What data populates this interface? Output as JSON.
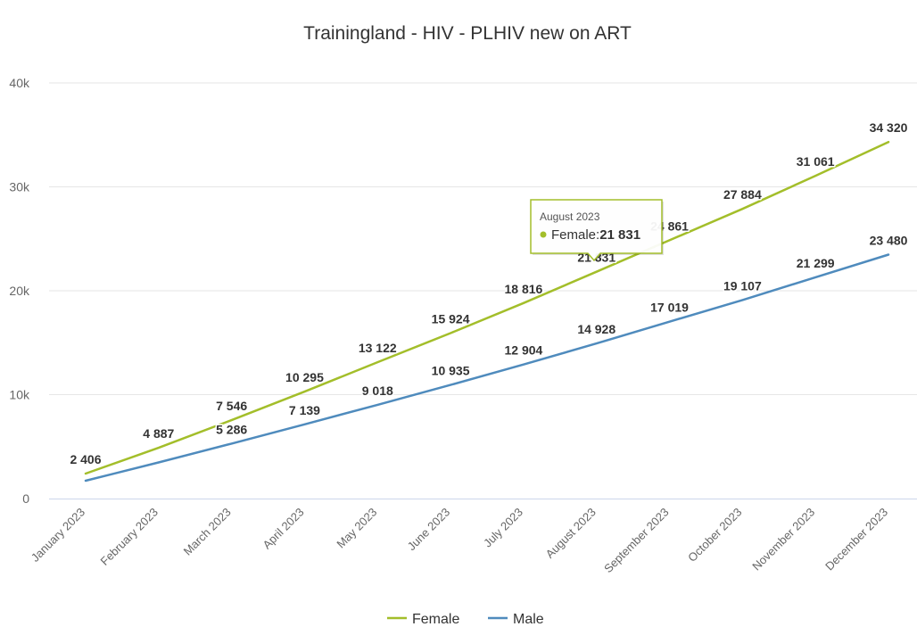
{
  "chart_data": {
    "type": "line",
    "title": "Trainingland - HIV - PLHIV new on ART",
    "categories": [
      "January 2023",
      "February 2023",
      "March 2023",
      "April 2023",
      "May 2023",
      "June 2023",
      "July 2023",
      "August 2023",
      "September 2023",
      "October 2023",
      "November 2023",
      "December 2023"
    ],
    "yticks": [
      "0",
      "10k",
      "20k",
      "30k",
      "40k"
    ],
    "ylim": [
      0,
      40000
    ],
    "grid": true,
    "legend_position": "bottom",
    "series": [
      {
        "name": "Female",
        "color": "#a3be2a",
        "values": [
          2406,
          4887,
          7546,
          10295,
          13122,
          15924,
          18816,
          21831,
          24861,
          27884,
          31061,
          34320
        ],
        "labels": [
          "2 406",
          "4 887",
          "7 546",
          "10 295",
          "13 122",
          "15 924",
          "18 816",
          "21 831",
          "24 861",
          "27 884",
          "31 061",
          "34 320"
        ]
      },
      {
        "name": "Male",
        "color": "#4f8bbd",
        "values": [
          1720,
          3480,
          5286,
          7139,
          9018,
          10935,
          12904,
          14928,
          17019,
          19107,
          21299,
          23480
        ],
        "labels": [
          null,
          null,
          "5 286",
          "7 139",
          "9 018",
          "10 935",
          "12 904",
          "14 928",
          "17 019",
          "19 107",
          "21 299",
          "23 480"
        ]
      }
    ],
    "tooltip": {
      "date": "August 2023",
      "series_label": "Female: ",
      "value": "21 831",
      "color": "#a3be2a",
      "border_color": "#a3be2a"
    }
  }
}
